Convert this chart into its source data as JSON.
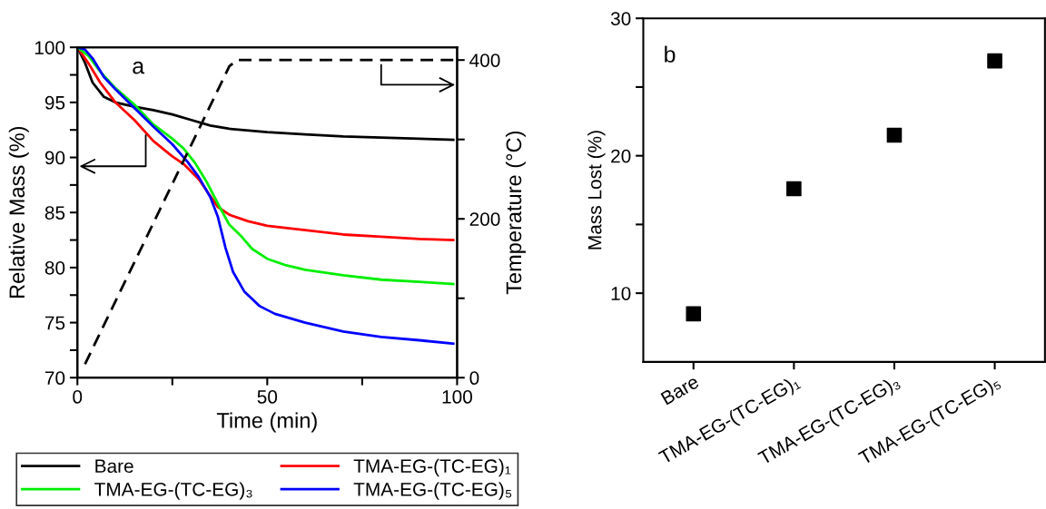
{
  "chart_data": [
    {
      "type": "line",
      "title": "a",
      "xlabel": "Time (min)",
      "ylabel": "Relative Mass (%)",
      "y2label": "Temperature (°C)",
      "xlim": [
        0,
        100
      ],
      "xticks": [
        0,
        {
          "value": 25,
          "label": null
        },
        50,
        {
          "value": 75,
          "label": null
        },
        100
      ],
      "ylim": [
        70,
        100
      ],
      "yticks": [
        70,
        {
          "value": 72.5,
          "label": null
        },
        75,
        {
          "value": 77.5,
          "label": null
        },
        80,
        {
          "value": 82.5,
          "label": null
        },
        85,
        {
          "value": 87.5,
          "label": null
        },
        90,
        {
          "value": 92.5,
          "label": null
        },
        95,
        {
          "value": 97.5,
          "label": null
        },
        100
      ],
      "y2lim": [
        0,
        416
      ],
      "y2ticks": [
        0,
        {
          "value": 100,
          "label": null
        },
        200,
        {
          "value": 300,
          "label": null
        },
        400
      ],
      "legend": "bottom",
      "line_style": "solid",
      "series": [
        {
          "name": "Bare",
          "color": "#000000",
          "x": [
            0,
            2,
            4,
            7,
            10,
            15,
            20,
            25,
            30,
            35,
            40,
            50,
            60,
            70,
            80,
            90,
            99
          ],
          "values": [
            100,
            98.6,
            96.8,
            95.5,
            95,
            94.6,
            94.3,
            93.9,
            93.4,
            92.9,
            92.6,
            92.3,
            92.1,
            91.9,
            91.8,
            91.7,
            91.6
          ]
        },
        {
          "name": "TMA-EG-(TC-EG)₁",
          "color": "#ff0000",
          "x": [
            0,
            3,
            6,
            10,
            15,
            20,
            25,
            28,
            32,
            35,
            37,
            40,
            45,
            50,
            60,
            70,
            80,
            90,
            99
          ],
          "values": [
            100,
            98.5,
            96.8,
            95,
            93.4,
            91.5,
            90.1,
            89.4,
            88,
            86.5,
            85.5,
            84.8,
            84.2,
            83.8,
            83.4,
            83.0,
            82.8,
            82.6,
            82.5
          ]
        },
        {
          "name": "TMA-EG-(TC-EG)₃",
          "color": "#00ee00",
          "x": [
            0,
            3,
            6,
            10,
            15,
            20,
            25,
            28,
            31,
            34,
            37,
            40,
            43,
            46,
            50,
            55,
            60,
            70,
            80,
            90,
            99
          ],
          "values": [
            100,
            99.2,
            97.8,
            96.3,
            94.8,
            93,
            91.7,
            90.8,
            89.5,
            87.8,
            85.8,
            83.9,
            82.9,
            81.7,
            80.8,
            80.2,
            79.8,
            79.3,
            78.9,
            78.7,
            78.5
          ]
        },
        {
          "name": "TMA-EG-(TC-EG)₅",
          "color": "#0000ff",
          "x": [
            0,
            2,
            4,
            7,
            10,
            15,
            20,
            25,
            29,
            32,
            35,
            37,
            39,
            41,
            44,
            48,
            52,
            60,
            70,
            80,
            90,
            99
          ],
          "values": [
            100,
            99.8,
            99,
            97.3,
            96.2,
            94.5,
            92.8,
            91.2,
            89.6,
            88.2,
            86.4,
            84.6,
            81.8,
            79.6,
            77.8,
            76.5,
            75.8,
            75,
            74.2,
            73.7,
            73.4,
            73.1
          ]
        },
        {
          "color": "#000000",
          "axis": "y2",
          "line_style": "dashed",
          "x": [
            2,
            40,
            42,
            100
          ],
          "values": [
            17,
            392,
            400,
            400
          ]
        }
      ]
    },
    {
      "type": "scatter",
      "title": "b",
      "ylabel": "Mass Lost (%)",
      "marker": "square",
      "categories": [
        "Bare",
        "TMA-EG-(TC-EG)₁",
        "TMA-EG-(TC-EG)₃",
        "TMA-EG-(TC-EG)₅"
      ],
      "ylim": [
        5,
        30
      ],
      "yticks": [
        10,
        {
          "value": 15,
          "label": null
        },
        20,
        {
          "value": 25,
          "label": null
        },
        30
      ],
      "series": [
        {
          "color": "#000000",
          "values": [
            8.5,
            17.6,
            21.5,
            26.9
          ]
        }
      ]
    }
  ]
}
